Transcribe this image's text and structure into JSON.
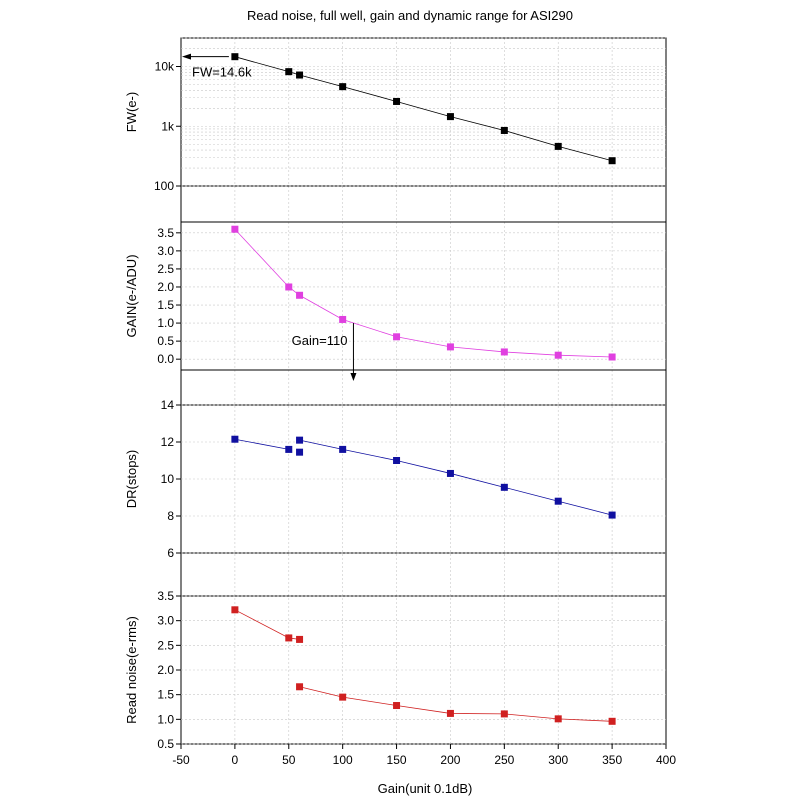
{
  "chart_data": {
    "title": "Read noise, full well, gain and dynamic range for ASI290",
    "xlabel": "Gain(unit 0.1dB)",
    "xlim": [
      -50,
      400
    ],
    "xticks": [
      "-50",
      "0",
      "50",
      "100",
      "150",
      "200",
      "250",
      "300",
      "350",
      "400"
    ],
    "panels": [
      {
        "type": "scatter-line",
        "name": "fw",
        "ylabel": "FW(e-)",
        "yscale": "log",
        "ylim": [
          100,
          30000
        ],
        "yticks": [
          {
            "value": 100,
            "label": "100"
          },
          {
            "value": 1000,
            "label": "1k"
          },
          {
            "value": 10000,
            "label": "10k"
          }
        ],
        "color": "#000000",
        "x": [
          0,
          50,
          60,
          100,
          150,
          200,
          250,
          300,
          350
        ],
        "y": [
          14600,
          8200,
          7200,
          4600,
          2600,
          1450,
          850,
          460,
          265
        ],
        "annotation": {
          "text": "FW=14.6k",
          "arrow": "left"
        }
      },
      {
        "type": "scatter-line",
        "name": "gain",
        "ylabel": "GAIN(e-/ADU)",
        "yscale": "linear",
        "ylim": [
          -0.3,
          3.8
        ],
        "yticks": [
          {
            "value": 0.0,
            "label": "0.0"
          },
          {
            "value": 0.5,
            "label": "0.5"
          },
          {
            "value": 1.0,
            "label": "1.0"
          },
          {
            "value": 1.5,
            "label": "1.5"
          },
          {
            "value": 2.0,
            "label": "2.0"
          },
          {
            "value": 2.5,
            "label": "2.5"
          },
          {
            "value": 3.0,
            "label": "3.0"
          },
          {
            "value": 3.5,
            "label": "3.5"
          }
        ],
        "color": "#e040e0",
        "x": [
          0,
          50,
          60,
          100,
          150,
          200,
          250,
          300,
          350
        ],
        "y": [
          3.6,
          2.0,
          1.77,
          1.1,
          0.62,
          0.34,
          0.2,
          0.11,
          0.06
        ],
        "annotation": {
          "text": "Gain=110",
          "arrow": "down",
          "x": 110
        }
      },
      {
        "type": "scatter-line",
        "name": "dr",
        "ylabel": "DR(stops)",
        "yscale": "linear",
        "ylim": [
          6,
          14
        ],
        "yticks": [
          {
            "value": 6,
            "label": "6"
          },
          {
            "value": 8,
            "label": "8"
          },
          {
            "value": 10,
            "label": "10"
          },
          {
            "value": 12,
            "label": "12"
          },
          {
            "value": 14,
            "label": "14"
          }
        ],
        "color": "#1010a0",
        "x": [
          0,
          50,
          60,
          60,
          100,
          150,
          200,
          250,
          300,
          350
        ],
        "y": [
          12.15,
          11.6,
          11.45,
          12.1,
          11.6,
          11.0,
          10.3,
          9.55,
          8.8,
          8.05
        ],
        "lines": [
          [
            0,
            1
          ],
          [
            3,
            4,
            5,
            6,
            7,
            8,
            9
          ]
        ]
      },
      {
        "type": "scatter-line",
        "name": "rn",
        "ylabel": "Read noise(e-rms)",
        "yscale": "linear",
        "ylim": [
          0.5,
          3.5
        ],
        "yticks": [
          {
            "value": 0.5,
            "label": "0.5"
          },
          {
            "value": 1.0,
            "label": "1.0"
          },
          {
            "value": 1.5,
            "label": "1.5"
          },
          {
            "value": 2.0,
            "label": "2.0"
          },
          {
            "value": 2.5,
            "label": "2.5"
          },
          {
            "value": 3.0,
            "label": "3.0"
          },
          {
            "value": 3.5,
            "label": "3.5"
          }
        ],
        "color": "#d02020",
        "x": [
          0,
          50,
          60,
          60,
          100,
          150,
          200,
          250,
          300,
          350
        ],
        "y": [
          3.22,
          2.65,
          2.62,
          1.66,
          1.45,
          1.28,
          1.12,
          1.11,
          1.01,
          0.96
        ],
        "lines": [
          [
            0,
            1,
            2
          ],
          [
            3,
            4,
            5,
            6,
            7,
            8,
            9
          ]
        ]
      }
    ]
  }
}
